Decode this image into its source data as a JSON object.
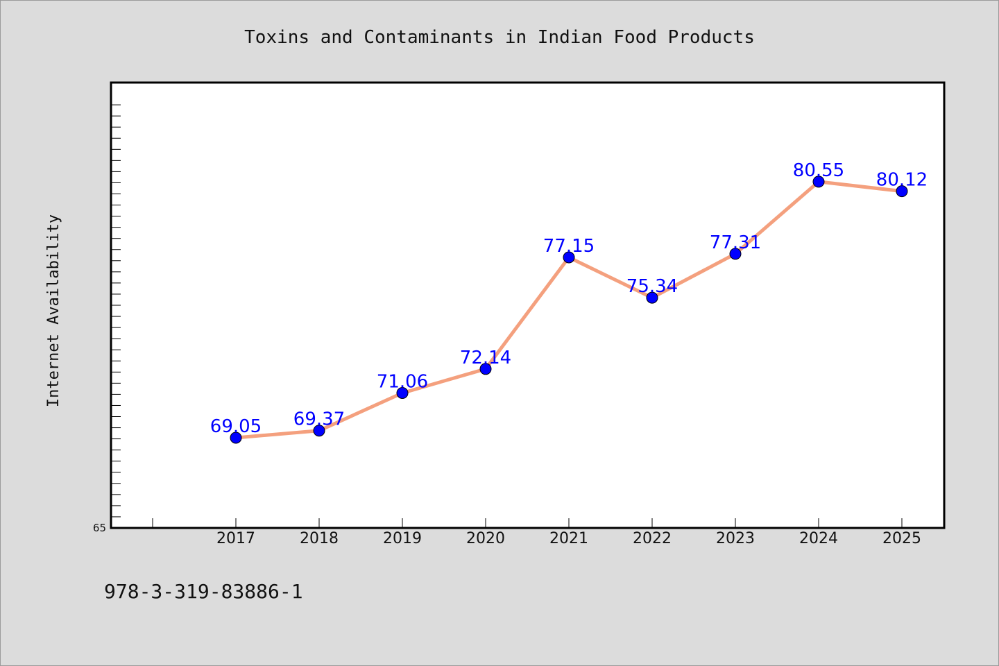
{
  "chart_data": {
    "type": "line",
    "title": "Toxins and Contaminants in Indian Food Products",
    "xlabel": "",
    "ylabel": "Internet Availability",
    "categories": [
      "2017",
      "2018",
      "2019",
      "2020",
      "2021",
      "2022",
      "2023",
      "2024",
      "2025"
    ],
    "series": [
      {
        "values": [
          69.05,
          69.37,
          71.06,
          72.14,
          77.15,
          75.34,
          77.31,
          80.55,
          80.12
        ],
        "labels": [
          "69.05",
          "69.37",
          "71.06",
          "72.14",
          "77.15",
          "75.34",
          "77.31",
          "80.55",
          "80.12"
        ]
      }
    ],
    "ylim": [
      65,
      85
    ],
    "yticks_labeled": [
      "65"
    ],
    "grid": false,
    "legend": "none",
    "colors": {
      "line": "#f4a07e",
      "marker": "#0000ff",
      "label": "#0000ff",
      "plot_background": "#ffffff",
      "page_background": "#dcdcdc"
    }
  },
  "footer": {
    "isbn": "978-3-319-83886-1"
  }
}
